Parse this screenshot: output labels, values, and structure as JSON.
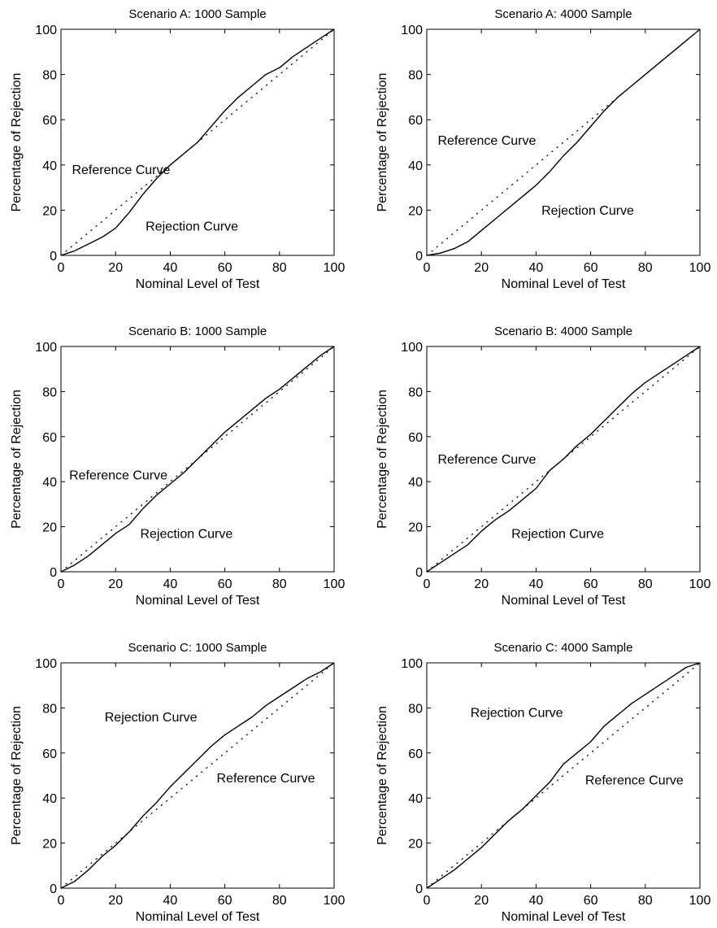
{
  "figure": {
    "xlabel": "Nominal Level of Test",
    "ylabel": "Percentage of Rejection",
    "reference_label": "Reference Curve",
    "rejection_label": "Rejection Curve"
  },
  "chart_data": [
    {
      "type": "line",
      "title": "Scenario A: 1000 Sample",
      "xlabel": "Nominal Level of Test",
      "ylabel": "Percentage of Rejection",
      "xlim": [
        0,
        100
      ],
      "ylim": [
        0,
        100
      ],
      "xticks": [
        0,
        20,
        40,
        60,
        80,
        100
      ],
      "yticks": [
        0,
        20,
        40,
        60,
        80,
        100
      ],
      "grid": false,
      "series": [
        {
          "name": "Reference Curve",
          "style": "dotted",
          "x": [
            0,
            100
          ],
          "y": [
            0,
            100
          ]
        },
        {
          "name": "Rejection Curve",
          "style": "solid",
          "x": [
            0,
            5,
            10,
            15,
            20,
            25,
            30,
            35,
            40,
            45,
            50,
            55,
            60,
            65,
            70,
            75,
            80,
            85,
            90,
            95,
            100
          ],
          "y": [
            0,
            2,
            5,
            8,
            12,
            19,
            27,
            34,
            40,
            45,
            50,
            57,
            64,
            70,
            75,
            80,
            83,
            88,
            92,
            96,
            100
          ]
        }
      ],
      "annotations": [
        {
          "text": "Reference Curve",
          "x": 4,
          "y": 36
        },
        {
          "text": "Rejection Curve",
          "x": 31,
          "y": 11
        }
      ]
    },
    {
      "type": "line",
      "title": "Scenario A: 4000 Sample",
      "xlabel": "Nominal Level of Test",
      "ylabel": "Percentage of Rejection",
      "xlim": [
        0,
        100
      ],
      "ylim": [
        0,
        100
      ],
      "xticks": [
        0,
        20,
        40,
        60,
        80,
        100
      ],
      "yticks": [
        0,
        20,
        40,
        60,
        80,
        100
      ],
      "grid": false,
      "series": [
        {
          "name": "Reference Curve",
          "style": "dotted",
          "x": [
            0,
            100
          ],
          "y": [
            0,
            100
          ]
        },
        {
          "name": "Rejection Curve",
          "style": "solid",
          "x": [
            0,
            5,
            10,
            15,
            20,
            25,
            30,
            35,
            40,
            45,
            50,
            55,
            60,
            65,
            70,
            75,
            80,
            85,
            90,
            95,
            100
          ],
          "y": [
            0,
            1,
            3,
            6,
            11,
            16,
            21,
            26,
            31,
            37,
            44,
            50,
            57,
            64,
            70,
            75,
            80,
            85,
            90,
            95,
            100
          ]
        }
      ],
      "annotations": [
        {
          "text": "Reference Curve",
          "x": 4,
          "y": 49
        },
        {
          "text": "Rejection Curve",
          "x": 42,
          "y": 18
        }
      ]
    },
    {
      "type": "line",
      "title": "Scenario B: 1000 Sample",
      "xlabel": "Nominal Level of Test",
      "ylabel": "Percentage of Rejection",
      "xlim": [
        0,
        100
      ],
      "ylim": [
        0,
        100
      ],
      "xticks": [
        0,
        20,
        40,
        60,
        80,
        100
      ],
      "yticks": [
        0,
        20,
        40,
        60,
        80,
        100
      ],
      "grid": false,
      "series": [
        {
          "name": "Reference Curve",
          "style": "dotted",
          "x": [
            0,
            100
          ],
          "y": [
            0,
            100
          ]
        },
        {
          "name": "Rejection Curve",
          "style": "solid",
          "x": [
            0,
            5,
            10,
            15,
            20,
            25,
            30,
            35,
            40,
            45,
            50,
            55,
            60,
            65,
            70,
            75,
            80,
            85,
            90,
            95,
            100
          ],
          "y": [
            0,
            3,
            7,
            12,
            17,
            21,
            28,
            34,
            39,
            44,
            50,
            56,
            62,
            67,
            72,
            77,
            81,
            86,
            91,
            96,
            100
          ]
        }
      ],
      "annotations": [
        {
          "text": "Reference Curve",
          "x": 3,
          "y": 41
        },
        {
          "text": "Rejection Curve",
          "x": 29,
          "y": 15
        }
      ]
    },
    {
      "type": "line",
      "title": "Scenario B: 4000 Sample",
      "xlabel": "Nominal Level of Test",
      "ylabel": "Percentage of Rejection",
      "xlim": [
        0,
        100
      ],
      "ylim": [
        0,
        100
      ],
      "xticks": [
        0,
        20,
        40,
        60,
        80,
        100
      ],
      "yticks": [
        0,
        20,
        40,
        60,
        80,
        100
      ],
      "grid": false,
      "series": [
        {
          "name": "Reference Curve",
          "style": "dotted",
          "x": [
            0,
            100
          ],
          "y": [
            0,
            100
          ]
        },
        {
          "name": "Rejection Curve",
          "style": "solid",
          "x": [
            0,
            5,
            10,
            15,
            20,
            25,
            30,
            35,
            40,
            45,
            50,
            55,
            60,
            65,
            70,
            75,
            80,
            85,
            90,
            95,
            100
          ],
          "y": [
            0,
            4,
            8,
            12,
            18,
            23,
            27,
            32,
            37,
            45,
            50,
            56,
            61,
            67,
            73,
            79,
            84,
            88,
            92,
            96,
            100
          ]
        }
      ],
      "annotations": [
        {
          "text": "Reference Curve",
          "x": 4,
          "y": 48
        },
        {
          "text": "Rejection Curve",
          "x": 31,
          "y": 15
        }
      ]
    },
    {
      "type": "line",
      "title": "Scenario C: 1000 Sample",
      "xlabel": "Nominal Level of Test",
      "ylabel": "Percentage of Rejection",
      "xlim": [
        0,
        100
      ],
      "ylim": [
        0,
        100
      ],
      "xticks": [
        0,
        20,
        40,
        60,
        80,
        100
      ],
      "yticks": [
        0,
        20,
        40,
        60,
        80,
        100
      ],
      "grid": false,
      "series": [
        {
          "name": "Reference Curve",
          "style": "dotted",
          "x": [
            0,
            100
          ],
          "y": [
            0,
            100
          ]
        },
        {
          "name": "Rejection Curve",
          "style": "solid",
          "x": [
            0,
            5,
            10,
            15,
            20,
            25,
            30,
            35,
            40,
            45,
            50,
            55,
            60,
            65,
            70,
            75,
            80,
            85,
            90,
            95,
            100
          ],
          "y": [
            0,
            3,
            8,
            14,
            19,
            25,
            32,
            38,
            45,
            51,
            57,
            63,
            68,
            72,
            76,
            81,
            85,
            89,
            93,
            96,
            100
          ]
        }
      ],
      "annotations": [
        {
          "text": "Rejection Curve",
          "x": 16,
          "y": 74
        },
        {
          "text": "Reference Curve",
          "x": 57,
          "y": 47
        }
      ]
    },
    {
      "type": "line",
      "title": "Scenario C: 4000 Sample",
      "xlabel": "Nominal Level of Test",
      "ylabel": "Percentage of Rejection",
      "xlim": [
        0,
        100
      ],
      "ylim": [
        0,
        100
      ],
      "xticks": [
        0,
        20,
        40,
        60,
        80,
        100
      ],
      "yticks": [
        0,
        20,
        40,
        60,
        80,
        100
      ],
      "grid": false,
      "series": [
        {
          "name": "Reference Curve",
          "style": "dotted",
          "x": [
            0,
            100
          ],
          "y": [
            0,
            100
          ]
        },
        {
          "name": "Rejection Curve",
          "style": "solid",
          "x": [
            0,
            5,
            10,
            15,
            20,
            25,
            30,
            35,
            40,
            45,
            50,
            55,
            60,
            65,
            70,
            75,
            80,
            85,
            90,
            95,
            100
          ],
          "y": [
            0,
            4,
            8,
            13,
            18,
            24,
            30,
            35,
            41,
            47,
            55,
            60,
            65,
            72,
            77,
            82,
            86,
            90,
            94,
            98,
            100
          ]
        }
      ],
      "annotations": [
        {
          "text": "Rejection Curve",
          "x": 16,
          "y": 76
        },
        {
          "text": "Reference Curve",
          "x": 58,
          "y": 46
        }
      ]
    }
  ]
}
